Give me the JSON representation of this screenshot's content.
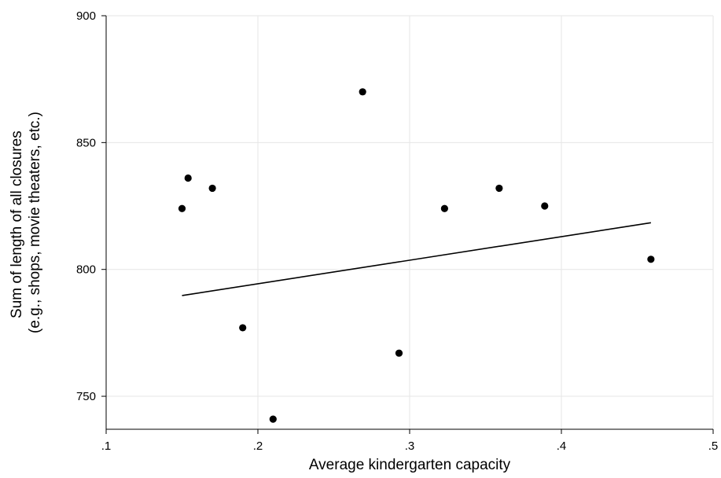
{
  "chart_data": {
    "type": "scatter",
    "title": "",
    "xlabel": "Average kindergarten capacity",
    "ylabel_lines": [
      "Sum of length of all closures",
      "(e.g., shops, movie theaters, etc.)"
    ],
    "xlim": [
      0.1,
      0.5
    ],
    "ylim": [
      737,
      900
    ],
    "xticks": [
      0.1,
      0.2,
      0.3,
      0.4,
      0.5
    ],
    "xtick_labels": [
      ".1",
      ".2",
      ".3",
      ".4",
      ".5"
    ],
    "yticks": [
      750,
      800,
      850,
      900
    ],
    "ytick_labels": [
      "750",
      "800",
      "850",
      "900"
    ],
    "grid": true,
    "points": [
      {
        "x": 0.15,
        "y": 824
      },
      {
        "x": 0.154,
        "y": 836
      },
      {
        "x": 0.17,
        "y": 832
      },
      {
        "x": 0.19,
        "y": 777
      },
      {
        "x": 0.21,
        "y": 741
      },
      {
        "x": 0.269,
        "y": 870
      },
      {
        "x": 0.293,
        "y": 767
      },
      {
        "x": 0.323,
        "y": 824
      },
      {
        "x": 0.359,
        "y": 832
      },
      {
        "x": 0.389,
        "y": 825
      },
      {
        "x": 0.459,
        "y": 804
      }
    ],
    "fit_line": {
      "x": [
        0.15,
        0.459
      ],
      "y": [
        789.7,
        818.4
      ]
    },
    "colors": {
      "points": "#000000",
      "fit": "#000000",
      "grid": "#e6e6e6"
    }
  }
}
